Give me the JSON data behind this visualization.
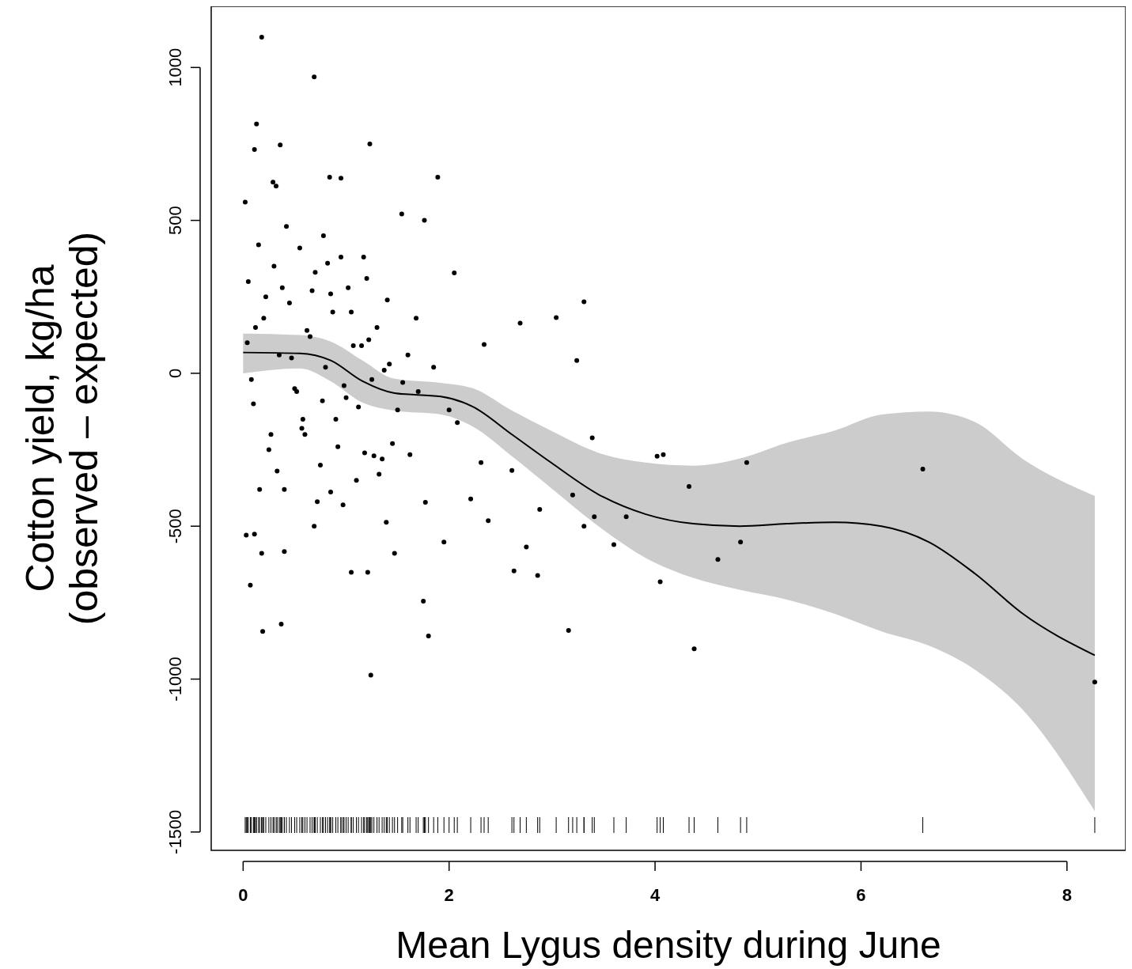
{
  "chart_data": {
    "type": "scatter",
    "xlabel": "Mean Lygus density during June",
    "ylabel": "Cotton yield, kg/ha\n(observed – expected)",
    "xlim": [
      -0.31,
      8.57
    ],
    "ylim": [
      -1560,
      1200
    ],
    "xticks": [
      0,
      2,
      4,
      6,
      8
    ],
    "yticks": [
      -1500,
      -1000,
      -500,
      0,
      500,
      1000
    ],
    "grid": false,
    "marker": "circle",
    "series": [
      {
        "type": "line",
        "color": "#000000",
        "marker": "none",
        "x": [
          0,
          0.55,
          0.85,
          1.16,
          1.47,
          1.92,
          2.23,
          2.61,
          2.99,
          3.45,
          3.91,
          4.37,
          4.82,
          5.28,
          5.74,
          6.2,
          6.66,
          7.11,
          7.57,
          8.27
        ],
        "values": [
          68,
          65,
          42,
          -26,
          -65,
          -76,
          -109,
          -200,
          -292,
          -396,
          -461,
          -492,
          -500,
          -492,
          -487,
          -500,
          -552,
          -656,
          -786,
          -922
        ],
        "lower": [
          0,
          16,
          -26,
          -96,
          -122,
          -135,
          -174,
          -271,
          -375,
          -500,
          -604,
          -669,
          -708,
          -740,
          -786,
          -844,
          -891,
          -970,
          -1100,
          -1432
        ],
        "upper": [
          130,
          125,
          104,
          42,
          -18,
          -31,
          -49,
          -122,
          -188,
          -260,
          -292,
          -302,
          -279,
          -227,
          -188,
          -135,
          -125,
          -160,
          -280,
          -401
        ]
      },
      {
        "color": "#000000",
        "x": [
          0.18,
          0.69,
          0.13,
          0.11,
          0.36,
          1.23,
          1.89,
          0.84,
          0.95,
          0.32,
          0.02,
          0.29,
          1.54,
          1.76,
          2.05,
          3.31,
          3.04,
          2.69,
          2.34,
          3.24,
          4.02,
          4.08,
          4.33,
          4.89,
          6.6,
          4.61,
          4.83,
          4.05,
          4.38,
          3.16,
          8.27,
          3.39,
          3.2,
          3.41,
          3.31,
          3.6,
          3.72,
          2.88,
          2.61,
          2.86,
          2.63,
          2.75,
          2.38,
          1.75,
          1.8,
          1.24,
          0.19,
          0.37,
          0.07,
          0.03,
          0.11,
          0.18,
          0.4,
          1.05,
          1.21,
          1.47,
          1.95,
          1.39,
          2.31,
          2.08,
          1.62,
          2.21,
          1.77,
          0.85,
          0.69,
          0.05,
          0.1,
          0.15,
          0.2,
          0.25,
          0.3,
          0.35,
          0.4,
          0.45,
          0.5,
          0.55,
          0.6,
          0.65,
          0.7,
          0.75,
          0.8,
          0.85,
          0.9,
          0.95,
          1.0,
          1.05,
          1.1,
          1.15,
          1.2,
          1.25,
          1.3,
          1.35,
          1.4,
          1.5,
          1.6,
          1.7,
          0.08,
          0.22,
          0.33,
          0.42,
          0.52,
          0.62,
          0.72,
          0.82,
          0.92,
          1.02,
          1.12,
          1.22,
          1.32,
          1.42,
          1.55,
          1.68,
          0.12,
          0.27,
          0.47,
          0.57,
          0.67,
          0.77,
          0.87,
          0.97,
          1.07,
          1.17,
          1.27,
          1.37,
          0.04,
          0.16,
          0.38,
          0.58,
          0.78,
          0.98,
          1.18,
          1.45,
          1.85,
          2.0
        ],
        "values": [
          1099,
          969,
          815,
          732,
          747,
          750,
          641,
          641,
          638,
          612,
          560,
          625,
          521,
          500,
          328,
          234,
          182,
          164,
          94,
          42,
          -271,
          -266,
          -370,
          -292,
          -313,
          -609,
          -552,
          -682,
          -901,
          -841,
          -1010,
          -211,
          -398,
          -469,
          -500,
          -560,
          -469,
          -445,
          -318,
          -661,
          -646,
          -568,
          -482,
          -745,
          -859,
          -987,
          -844,
          -820,
          -693,
          -529,
          -526,
          -589,
          -583,
          -651,
          -651,
          -589,
          -552,
          -487,
          -292,
          -161,
          -266,
          -411,
          -422,
          -388,
          -500,
          300,
          -100,
          420,
          180,
          -250,
          350,
          60,
          -380,
          230,
          -50,
          410,
          -200,
          120,
          330,
          -300,
          20,
          260,
          -150,
          380,
          -80,
          200,
          -350,
          90,
          310,
          -20,
          150,
          -280,
          240,
          -120,
          60,
          -60,
          -20,
          250,
          -320,
          480,
          -60,
          140,
          -420,
          360,
          -240,
          280,
          -110,
          110,
          -330,
          30,
          -30,
          180,
          150,
          -200,
          50,
          -180,
          270,
          -90,
          200,
          -430,
          90,
          380,
          -270,
          10,
          100,
          -380,
          280,
          -150,
          450,
          -40,
          -260,
          -230,
          20,
          -120
        ]
      }
    ]
  }
}
